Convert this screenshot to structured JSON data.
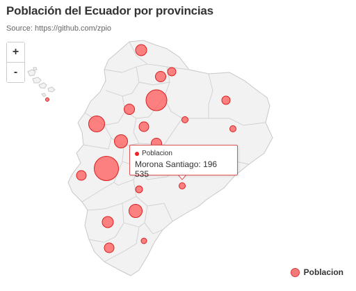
{
  "title": "Población del Ecuador por provincias",
  "subtitle": "Source: https://github.com/zpio",
  "zoom": {
    "in_label": "+",
    "out_label": "-"
  },
  "tooltip": {
    "series": "Poblacion",
    "line": "Morona Santiago: 196 535"
  },
  "legend": {
    "label": "Poblacion"
  },
  "colors": {
    "bubble_fill": "#ff5a5a",
    "bubble_stroke": "#d91e1e",
    "land": "#f2f2f2",
    "border": "#c8c8c8"
  }
}
